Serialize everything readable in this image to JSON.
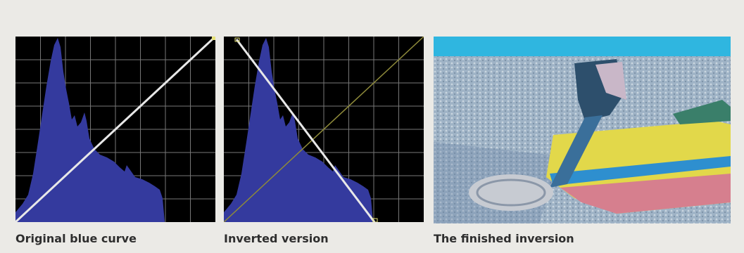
{
  "captions": [
    "Original blue curve",
    "Inverted version",
    "The finished inversion"
  ]
}
